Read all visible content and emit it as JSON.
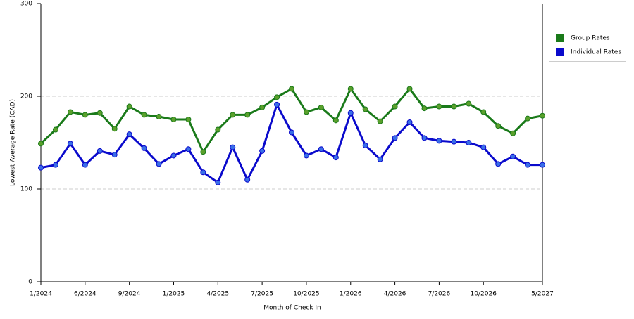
{
  "chart_data": {
    "type": "line",
    "x_label": "Month of Check In",
    "y_label": "Lowest Average Rate (CAD)",
    "categories": [
      "1/2024",
      null,
      null,
      "6/2024",
      null,
      null,
      "9/2024",
      null,
      null,
      "1/2025",
      null,
      null,
      "4/2025",
      null,
      null,
      "7/2025",
      null,
      null,
      "10/2025",
      null,
      null,
      "1/2026",
      null,
      null,
      "4/2026",
      null,
      null,
      "7/2026",
      null,
      null,
      "10/2026",
      null,
      null,
      null,
      "5/2027"
    ],
    "series": [
      {
        "name": "Group Rates",
        "color": "#1a7a1a",
        "marker_color": "#5aa02c",
        "values": [
          149,
          164,
          183,
          180,
          182,
          165,
          189,
          180,
          178,
          175,
          175,
          140,
          164,
          180,
          180,
          188,
          199,
          208,
          183,
          188,
          174,
          208,
          186,
          173,
          189,
          208,
          187,
          189,
          189,
          192,
          183,
          168,
          160,
          176,
          179
        ]
      },
      {
        "name": "Individual Rates",
        "color": "#0a0acc",
        "marker_color": "#3a6ee8",
        "values": [
          123,
          126,
          149,
          126,
          141,
          137,
          159,
          144,
          127,
          136,
          143,
          118,
          107,
          145,
          110,
          141,
          191,
          161,
          136,
          143,
          134,
          182,
          147,
          132,
          155,
          172,
          155,
          152,
          151,
          150,
          145,
          127,
          135,
          126,
          126
        ]
      }
    ],
    "ylim": [
      0,
      300
    ],
    "yticks": [
      0,
      100,
      200,
      300
    ],
    "grid": true
  }
}
